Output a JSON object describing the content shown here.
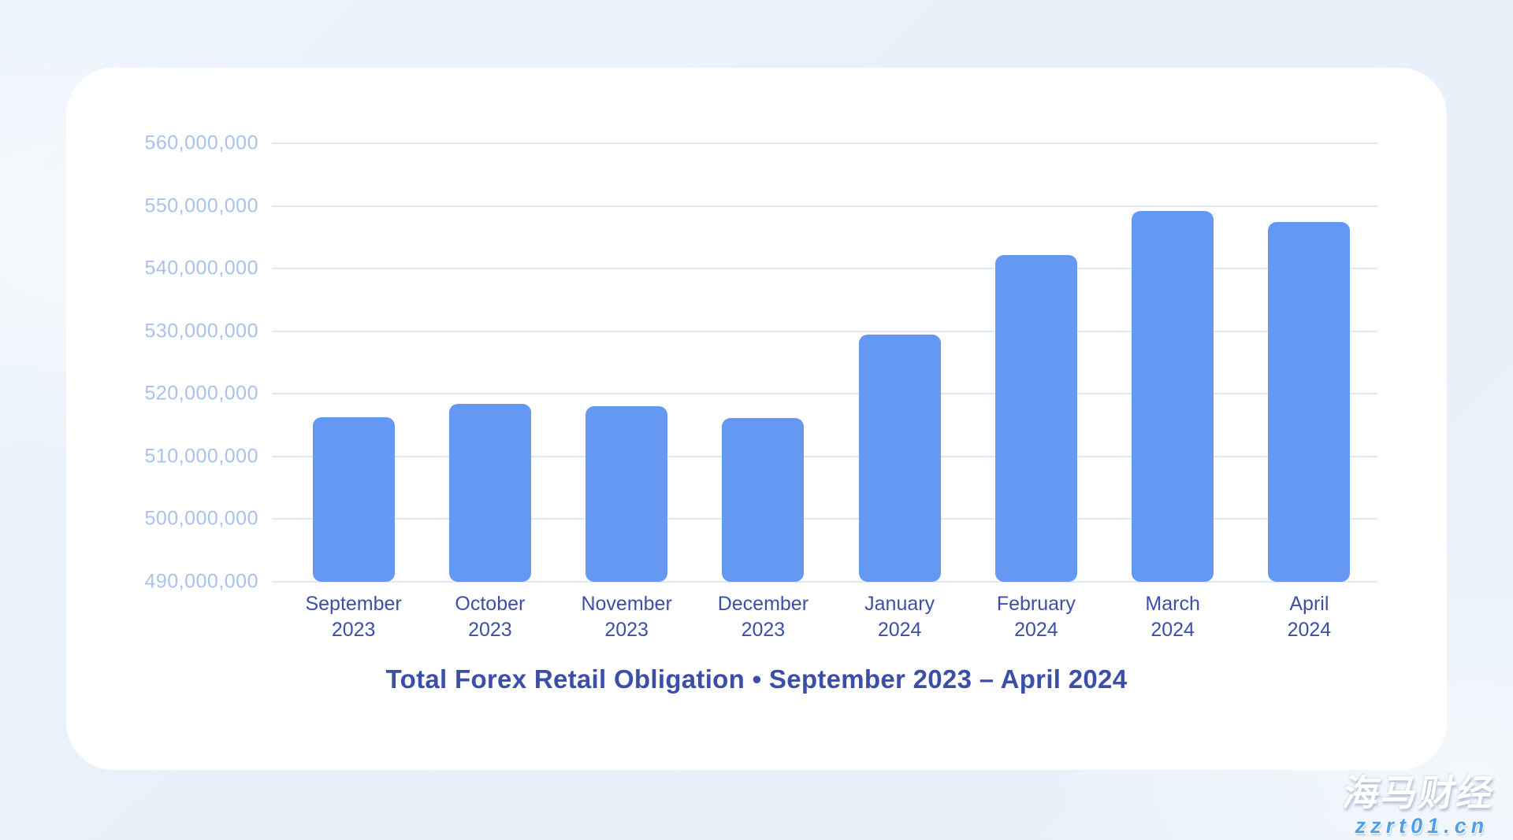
{
  "chart_data": {
    "type": "bar",
    "title": "Total Forex Retail Obligation • September 2023 – April 2024",
    "categories": [
      "September\n2023",
      "October\n2023",
      "November\n2023",
      "December\n2023",
      "January\n2024",
      "February\n2024",
      "March\n2024",
      "April\n2024"
    ],
    "values": [
      516300000,
      518400000,
      518000000,
      516100000,
      529500000,
      542100000,
      549200000,
      547400000
    ],
    "xlabel": "",
    "ylabel": "",
    "ylim": [
      490000000,
      560000000
    ],
    "ytick_step": 10000000,
    "ytick_labels": [
      "560,000,000",
      "550,000,000",
      "540,000,000",
      "530,000,000",
      "520,000,000",
      "510,000,000",
      "500,000,000",
      "490,000,000"
    ],
    "grid": true,
    "legend": false,
    "legend_position": "none"
  },
  "colors": {
    "background": "#e9f1fa",
    "card": "#ffffff",
    "bar": "#6598f2",
    "gridline": "#dfe9f6",
    "y_tick_text": "#a9c2ec",
    "category_text": "#3c4fa8",
    "title_text": "#3b4ea8",
    "watermark_brand": "#ffffff",
    "watermark_url": "#4da0e8"
  },
  "watermark": {
    "brand": "海马财经",
    "url": "zzrt01.cn"
  }
}
